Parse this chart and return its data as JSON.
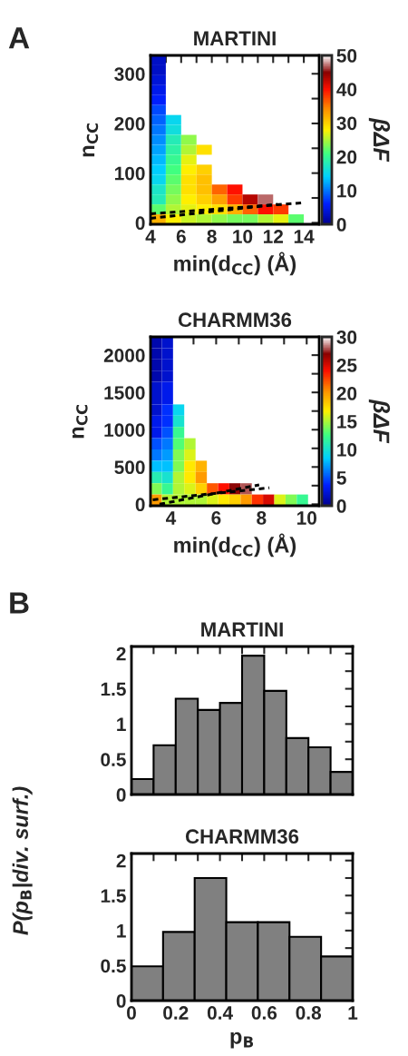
{
  "chart_data": [
    {
      "type": "heatmap",
      "title": "MARTINI",
      "xlabel": "min(d$_{CC}$) (Å)",
      "ylabel": "n$_{CC}$",
      "clabel": "βΔF",
      "annotations": [
        "A"
      ],
      "x": [
        4.5,
        5.5,
        6.5,
        7.5,
        8.5,
        9.5,
        10.5,
        11.5,
        12.5,
        13.5,
        14.5
      ],
      "xlim": [
        4,
        15
      ],
      "xticks": [
        4,
        {
          "value": 5,
          "label": null
        },
        6,
        {
          "value": 7,
          "label": null
        },
        8,
        {
          "value": 9,
          "label": null
        },
        10,
        {
          "value": 11,
          "label": null
        },
        12,
        {
          "value": 13,
          "label": null
        },
        14,
        {
          "value": 15,
          "label": null
        }
      ],
      "ylim": [
        -3,
        337
      ],
      "yticks": [
        0,
        {
          "value": 50,
          "label": null
        },
        100,
        {
          "value": 150,
          "label": null
        },
        200,
        {
          "value": 250,
          "label": null
        },
        300
      ],
      "clim": [
        0,
        50
      ],
      "cticks": [
        0,
        10,
        20,
        30,
        40,
        50
      ],
      "cells": [
        [
          3,
          null,
          null,
          null,
          null,
          null,
          null,
          null,
          null,
          null,
          null
        ],
        [
          3,
          null,
          null,
          null,
          null,
          null,
          null,
          null,
          null,
          null,
          null
        ],
        [
          4,
          null,
          null,
          null,
          null,
          null,
          null,
          null,
          null,
          null,
          null
        ],
        [
          5,
          null,
          null,
          null,
          null,
          null,
          null,
          null,
          null,
          null,
          null
        ],
        [
          6,
          null,
          null,
          null,
          null,
          null,
          null,
          null,
          null,
          null,
          null
        ],
        [
          8,
          null,
          null,
          null,
          null,
          null,
          null,
          null,
          null,
          null,
          null
        ],
        [
          9,
          15,
          null,
          null,
          null,
          null,
          null,
          null,
          null,
          null,
          null
        ],
        [
          10,
          16,
          null,
          null,
          null,
          null,
          null,
          null,
          null,
          null,
          null
        ],
        [
          11,
          18,
          24,
          null,
          null,
          null,
          null,
          null,
          null,
          null,
          null
        ],
        [
          12,
          19,
          25,
          29,
          null,
          null,
          null,
          null,
          null,
          null,
          null
        ],
        [
          13,
          20,
          27,
          null,
          null,
          null,
          null,
          null,
          null,
          null,
          null
        ],
        [
          14,
          21,
          28,
          30,
          null,
          null,
          null,
          null,
          null,
          null,
          null
        ],
        [
          15,
          22,
          29,
          31,
          null,
          null,
          null,
          null,
          null,
          null,
          null
        ],
        [
          17,
          23,
          29,
          31,
          36,
          40,
          null,
          null,
          null,
          null,
          null
        ],
        [
          18,
          24,
          28,
          30,
          33,
          38,
          43,
          47,
          null,
          null,
          null
        ],
        [
          22,
          25,
          27,
          28,
          29,
          32,
          36,
          40,
          38,
          null,
          null
        ],
        [
          32,
          28,
          26,
          25,
          24,
          23,
          23,
          25,
          27,
          22,
          null
        ]
      ],
      "series": [
        {
          "type": "line",
          "color": "#000000",
          "line_style": "dashed",
          "x": [
            4,
            13.9
          ],
          "values": [
            18,
            40
          ]
        },
        {
          "type": "line",
          "color": "#000000",
          "line_style": "dashed",
          "x": [
            4,
            12.3
          ],
          "values": [
            9,
            37
          ]
        }
      ]
    },
    {
      "type": "heatmap",
      "title": "CHARMM36",
      "xlabel": "min(d$_{CC}$) (Å)",
      "ylabel": "n$_{CC}$",
      "clabel": "βΔF",
      "x": [
        3.35,
        3.85,
        4.34,
        4.84,
        5.34,
        5.84,
        6.33,
        6.83,
        7.33,
        7.82,
        8.32,
        8.82,
        9.31,
        9.81,
        10.31
      ],
      "xlim": [
        3.1,
        10.55
      ],
      "xticks": [
        4,
        {
          "value": 5,
          "label": null
        },
        6,
        {
          "value": 7,
          "label": null
        },
        8,
        {
          "value": 9,
          "label": null
        },
        10
      ],
      "ylim": [
        -20,
        2245
      ],
      "yticks": [
        0,
        {
          "value": 250,
          "label": null
        },
        500,
        {
          "value": 750,
          "label": null
        },
        1000,
        {
          "value": 1250,
          "label": null
        },
        1500,
        {
          "value": 1750,
          "label": null
        },
        2000
      ],
      "clim": [
        0,
        30
      ],
      "cticks": [
        0,
        5,
        10,
        15,
        20,
        25,
        30
      ],
      "cells": [
        [
          1,
          2,
          null,
          null,
          null,
          null,
          null,
          null,
          null,
          null,
          null,
          null,
          null,
          null,
          null
        ],
        [
          1,
          2,
          null,
          null,
          null,
          null,
          null,
          null,
          null,
          null,
          null,
          null,
          null,
          null,
          null
        ],
        [
          1,
          2,
          null,
          null,
          null,
          null,
          null,
          null,
          null,
          null,
          null,
          null,
          null,
          null,
          null
        ],
        [
          1,
          2,
          null,
          null,
          null,
          null,
          null,
          null,
          null,
          null,
          null,
          null,
          null,
          null,
          null
        ],
        [
          2,
          3,
          null,
          null,
          null,
          null,
          null,
          null,
          null,
          null,
          null,
          null,
          null,
          null,
          null
        ],
        [
          2,
          3,
          null,
          null,
          null,
          null,
          null,
          null,
          null,
          null,
          null,
          null,
          null,
          null,
          null
        ],
        [
          2,
          4,
          9,
          null,
          null,
          null,
          null,
          null,
          null,
          null,
          null,
          null,
          null,
          null,
          null
        ],
        [
          3,
          4,
          10,
          null,
          null,
          null,
          null,
          null,
          null,
          null,
          null,
          null,
          null,
          null,
          null
        ],
        [
          3,
          5,
          12,
          null,
          null,
          null,
          null,
          null,
          null,
          null,
          null,
          null,
          null,
          null,
          null
        ],
        [
          5,
          6,
          13,
          15,
          null,
          null,
          null,
          null,
          null,
          null,
          null,
          null,
          null,
          null,
          null
        ],
        [
          6,
          7,
          14,
          16,
          null,
          null,
          null,
          null,
          null,
          null,
          null,
          null,
          null,
          null,
          null
        ],
        [
          8,
          8,
          14,
          17,
          19,
          null,
          null,
          null,
          null,
          null,
          null,
          null,
          null,
          null,
          null
        ],
        [
          11,
          10,
          15,
          17,
          20,
          null,
          null,
          null,
          null,
          null,
          null,
          null,
          null,
          null,
          null
        ],
        [
          14,
          12,
          15,
          16,
          18,
          22,
          24,
          27,
          28,
          null,
          null,
          null,
          null,
          null,
          null
        ],
        [
          20,
          15,
          15,
          15,
          15,
          16,
          17,
          18,
          20,
          23,
          25,
          16,
          14,
          12,
          null
        ]
      ],
      "series": [
        {
          "type": "line",
          "color": "#000000",
          "line_style": "dashed",
          "x": [
            3.2,
            8.35
          ],
          "values": [
            60,
            220
          ]
        },
        {
          "type": "line",
          "color": "#000000",
          "line_style": "dashed",
          "x": [
            3.5,
            7.9
          ],
          "values": [
            0,
            260
          ]
        }
      ]
    },
    {
      "type": "histogram",
      "title": "MARTINI",
      "ylabel": "P(p$_{B}$|div. surf.)",
      "annotations": [
        "B"
      ],
      "tick_labels": "y",
      "bins": [
        0,
        0.1,
        0.2,
        0.3,
        0.4,
        0.5,
        0.6,
        0.7,
        0.8,
        0.9,
        1.0
      ],
      "values": [
        0.22,
        0.7,
        1.36,
        1.2,
        1.3,
        1.97,
        1.47,
        0.8,
        0.67,
        0.32
      ],
      "color": "#808080",
      "xlim": [
        0,
        1
      ],
      "xticks": [
        0,
        0.1,
        0.2,
        0.3,
        0.4,
        0.5,
        0.6,
        0.7,
        0.8,
        0.9,
        1
      ],
      "ylim": [
        0,
        2.1
      ],
      "yticks": [
        0,
        {
          "value": 0.25,
          "label": null
        },
        0.5,
        {
          "value": 0.75,
          "label": null
        },
        1,
        {
          "value": 1.25,
          "label": null
        },
        1.5,
        {
          "value": 1.75,
          "label": null
        },
        2
      ]
    },
    {
      "type": "histogram",
      "title": "CHARMM36",
      "xlabel": "p$_{B}$",
      "bins": [
        0,
        0.142857,
        0.285714,
        0.428571,
        0.571429,
        0.714286,
        0.857143,
        1.0
      ],
      "values": [
        0.49,
        0.98,
        1.75,
        1.12,
        1.12,
        0.91,
        0.63
      ],
      "color": "#808080",
      "xlim": [
        0,
        1
      ],
      "xticks": [
        0,
        {
          "value": 0.1,
          "label": null
        },
        0.2,
        {
          "value": 0.3,
          "label": null
        },
        0.4,
        {
          "value": 0.5,
          "label": null
        },
        0.6,
        {
          "value": 0.7,
          "label": null
        },
        0.8,
        {
          "value": 0.9,
          "label": null
        },
        1
      ],
      "ylim": [
        0,
        2.1
      ],
      "yticks": [
        0,
        {
          "value": 0.25,
          "label": null
        },
        0.5,
        {
          "value": 0.75,
          "label": null
        },
        1,
        {
          "value": 1.25,
          "label": null
        },
        1.5,
        {
          "value": 1.75,
          "label": null
        },
        2
      ]
    }
  ]
}
